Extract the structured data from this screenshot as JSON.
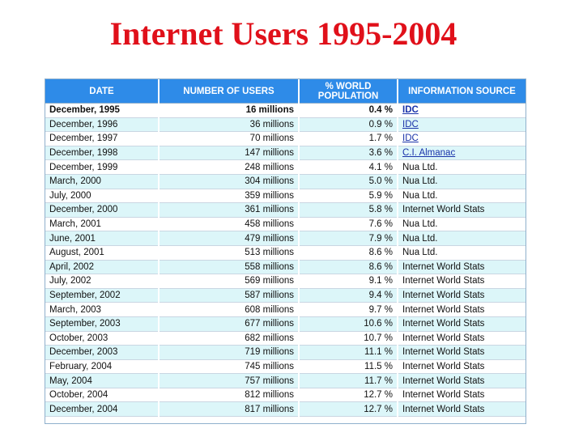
{
  "title": "Internet Users 1995-2004",
  "chart_data": {
    "type": "table",
    "title": "Internet Users 1995-2004",
    "columns": [
      "DATE",
      "NUMBER OF USERS",
      "% WORLD POPULATION",
      "INFORMATION SOURCE"
    ],
    "rows": [
      {
        "date": "December, 1995",
        "users": "16 millions",
        "pct": "0.4 %",
        "source": "IDC"
      },
      {
        "date": "December, 1996",
        "users": "36 millions",
        "pct": "0.9 %",
        "source": "IDC"
      },
      {
        "date": "December, 1997",
        "users": "70 millions",
        "pct": "1.7 %",
        "source": "IDC"
      },
      {
        "date": "December, 1998",
        "users": "147 millions",
        "pct": "3.6 %",
        "source": "C.I. Almanac"
      },
      {
        "date": "December, 1999",
        "users": "248 millions",
        "pct": "4.1 %",
        "source": "Nua Ltd."
      },
      {
        "date": "March, 2000",
        "users": "304 millions",
        "pct": "5.0 %",
        "source": "Nua Ltd."
      },
      {
        "date": "July, 2000",
        "users": "359 millions",
        "pct": "5.9 %",
        "source": "Nua Ltd."
      },
      {
        "date": "December, 2000",
        "users": "361 millions",
        "pct": "5.8 %",
        "source": "Internet World Stats"
      },
      {
        "date": "March, 2001",
        "users": "458 millions",
        "pct": "7.6 %",
        "source": "Nua Ltd."
      },
      {
        "date": "June, 2001",
        "users": "479 millions",
        "pct": "7.9 %",
        "source": "Nua Ltd."
      },
      {
        "date": "August, 2001",
        "users": "513 millions",
        "pct": "8.6 %",
        "source": "Nua Ltd."
      },
      {
        "date": "April, 2002",
        "users": "558 millions",
        "pct": "8.6 %",
        "source": "Internet World Stats"
      },
      {
        "date": "July, 2002",
        "users": "569 millions",
        "pct": "9.1 %",
        "source": "Internet World Stats"
      },
      {
        "date": "September, 2002",
        "users": "587 millions",
        "pct": "9.4 %",
        "source": "Internet World Stats"
      },
      {
        "date": "March, 2003",
        "users": "608 millions",
        "pct": "9.7 %",
        "source": "Internet World Stats"
      },
      {
        "date": "September, 2003",
        "users": "677 millions",
        "pct": "10.6 %",
        "source": "Internet World Stats"
      },
      {
        "date": "October, 2003",
        "users": "682 millions",
        "pct": "10.7 %",
        "source": "Internet World Stats"
      },
      {
        "date": "December, 2003",
        "users": "719 millions",
        "pct": "11.1 %",
        "source": "Internet World Stats"
      },
      {
        "date": "February, 2004",
        "users": "745 millions",
        "pct": "11.5 %",
        "source": "Internet World Stats"
      },
      {
        "date": "May, 2004",
        "users": "757 millions",
        "pct": "11.7 %",
        "source": "Internet World Stats"
      },
      {
        "date": "October, 2004",
        "users": "812 millions",
        "pct": "12.7 %",
        "source": "Internet World Stats"
      },
      {
        "date": "December, 2004",
        "users": "817 millions",
        "pct": "12.7 %",
        "source": "Internet World Stats"
      }
    ],
    "linked_sources": [
      "IDC",
      "C.I. Almanac"
    ],
    "colors": {
      "header_bg": "#2e8be8",
      "row_alt_bg": "#dcf6f9",
      "title_color": "#e0101a"
    }
  }
}
